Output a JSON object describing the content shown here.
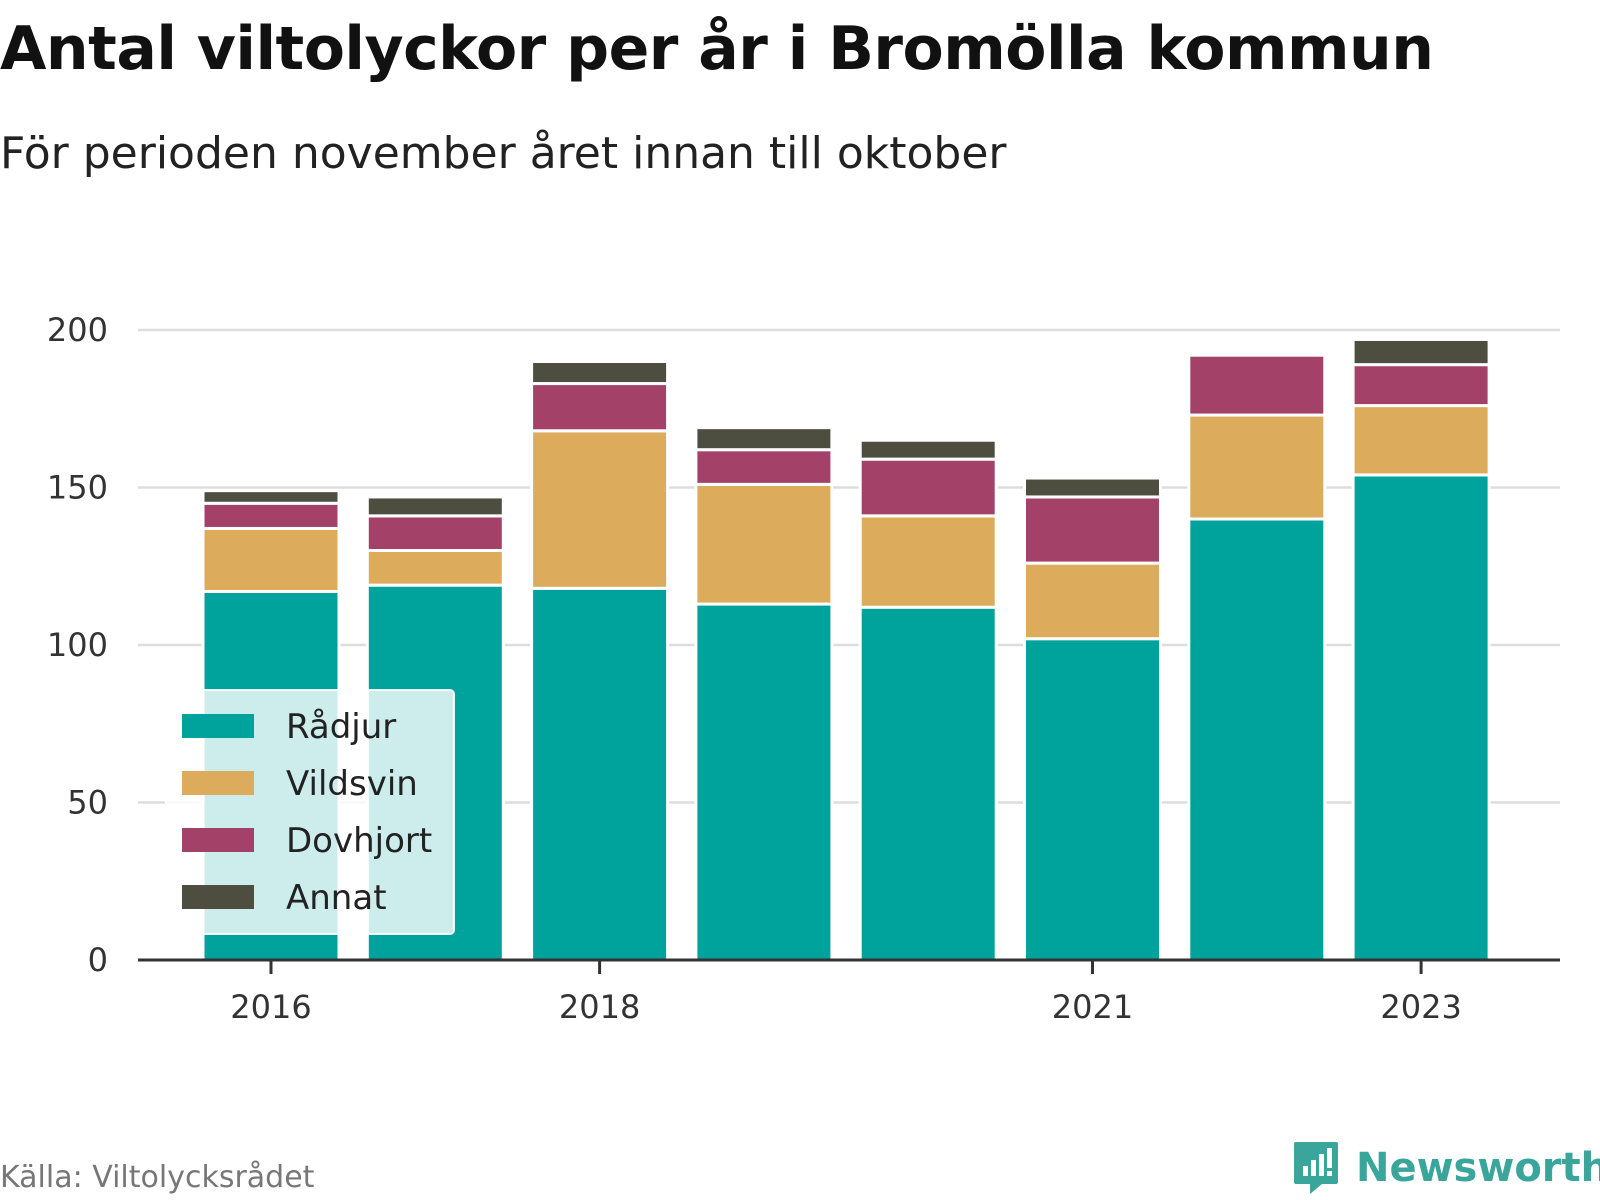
{
  "chart_data": {
    "type": "bar",
    "stacked": true,
    "title": "Antal viltolyckor per år i Bromölla kommun",
    "subtitle": "För perioden november året innan till oktober",
    "categories": [
      "2016",
      "2017",
      "2018",
      "2019",
      "2020",
      "2021",
      "2022",
      "2023"
    ],
    "x_tick_labels": [
      "2016",
      "2018",
      "2021",
      "2023"
    ],
    "y_ticks": [
      "0",
      "50",
      "100",
      "150",
      "200"
    ],
    "ylim": [
      0,
      200
    ],
    "grid": true,
    "legend_position": "bottom-left",
    "series": [
      {
        "name": "Rådjur",
        "color": "#00a39b",
        "values": [
          117,
          119,
          118,
          113,
          112,
          102,
          140,
          154
        ]
      },
      {
        "name": "Vildsvin",
        "color": "#dcab5b",
        "values": [
          20,
          11,
          50,
          38,
          29,
          24,
          33,
          22
        ]
      },
      {
        "name": "Dovhjort",
        "color": "#a44168",
        "values": [
          8,
          11,
          15,
          11,
          18,
          21,
          19,
          13
        ]
      },
      {
        "name": "Annat",
        "color": "#4d4d40",
        "values": [
          4,
          6,
          7,
          7,
          6,
          6,
          0,
          8
        ]
      }
    ]
  },
  "footer": {
    "source": "Källa: Viltolycksrådet",
    "brand": "Newsworthy",
    "brand_icon": "bar-chart-speech-bubble-icon",
    "brand_color": "#3aa59b"
  }
}
